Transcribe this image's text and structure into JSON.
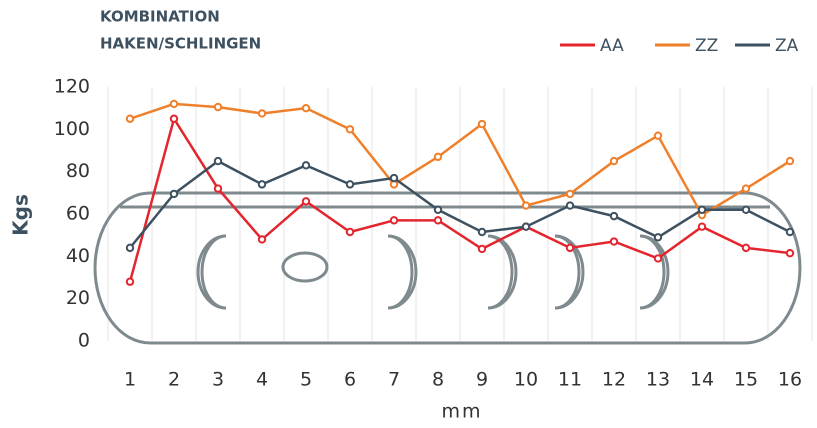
{
  "chart_data": {
    "type": "line",
    "title": [
      "KOMBINATION",
      "HAKEN/SCHLINGEN"
    ],
    "x_label": "mm",
    "y_label": "Kgs",
    "categories": [
      "1",
      "2",
      "3",
      "4",
      "5",
      "6",
      "7",
      "8",
      "9",
      "10",
      "11",
      "12",
      "13",
      "14",
      "15",
      "16"
    ],
    "series": [
      {
        "name": "AA",
        "color": "#e3262e",
        "values": [
          28,
          105,
          72,
          48,
          66,
          51.5,
          57,
          57,
          43.5,
          54,
          44,
          47,
          39,
          54,
          44,
          41.5
        ]
      },
      {
        "name": "ZZ",
        "color": "#f07f2a",
        "values": [
          105,
          112,
          110.5,
          107.5,
          110,
          100,
          74,
          87,
          102.5,
          64,
          69.5,
          85,
          97,
          59.5,
          72,
          85
        ]
      },
      {
        "name": "ZA",
        "color": "#3d5160",
        "values": [
          44,
          69.5,
          85,
          74,
          83,
          74,
          77,
          62,
          51.5,
          54,
          64,
          59,
          49,
          62,
          62,
          51.5
        ]
      }
    ],
    "ylim": [
      0,
      120
    ],
    "yticks": [
      0,
      20,
      40,
      60,
      80,
      100,
      120
    ],
    "grid": true
  }
}
